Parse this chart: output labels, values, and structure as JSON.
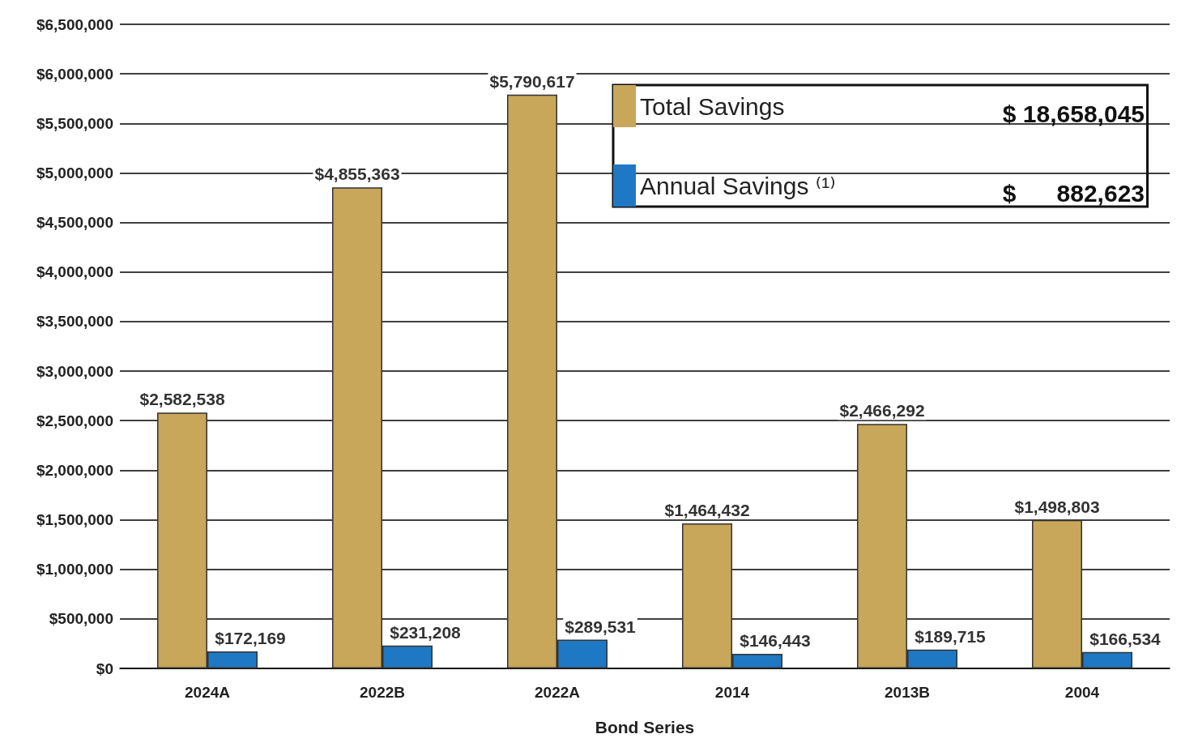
{
  "chart_data": {
    "type": "bar",
    "xlabel": "Bond Series",
    "categories": [
      "2024A",
      "2022B",
      "2022A",
      "2014",
      "2013B",
      "2004"
    ],
    "series": [
      {
        "name": "Total Savings",
        "color": "#c8a65a",
        "values": [
          2582538,
          4855363,
          5790617,
          1464432,
          2466292,
          1498803
        ],
        "value_labels": [
          "$2,582,538",
          "$4,855,363",
          "$5,790,617",
          "$1,464,432",
          "$2,466,292",
          "$1,498,803"
        ]
      },
      {
        "name": "Annual Savings ⁽¹⁾",
        "color": "#1f78c4",
        "values": [
          172169,
          231208,
          289531,
          146443,
          189715,
          166534
        ],
        "value_labels": [
          "$172,169",
          "$231,208",
          "$289,531",
          "$146,443",
          "$189,715",
          "$166,534"
        ]
      }
    ],
    "annotations": [
      "$ 18,658,045",
      "$      882,623"
    ],
    "ylim": [
      0,
      6500000
    ],
    "yticks": [
      {
        "value": 0,
        "label": "$0"
      },
      {
        "value": 500000,
        "label": "$500,000"
      },
      {
        "value": 1000000,
        "label": "$1,000,000"
      },
      {
        "value": 1500000,
        "label": "$1,500,000"
      },
      {
        "value": 2000000,
        "label": "$2,000,000"
      },
      {
        "value": 2500000,
        "label": "$2,500,000"
      },
      {
        "value": 3000000,
        "label": "$3,000,000"
      },
      {
        "value": 3500000,
        "label": "$3,500,000"
      },
      {
        "value": 4000000,
        "label": "$4,000,000"
      },
      {
        "value": 4500000,
        "label": "$4,500,000"
      },
      {
        "value": 5000000,
        "label": "$5,000,000"
      },
      {
        "value": 5500000,
        "label": "$5,500,000"
      },
      {
        "value": 6000000,
        "label": "$6,000,000"
      },
      {
        "value": 6500000,
        "label": "$6,500,000"
      }
    ],
    "grid": "y",
    "legend": "top right"
  }
}
